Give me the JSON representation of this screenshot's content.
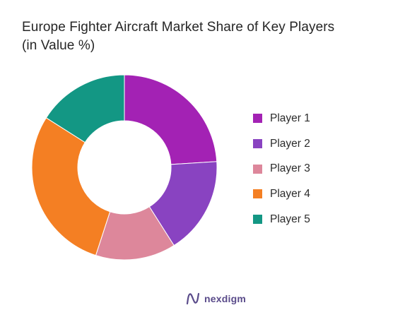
{
  "title_line1": "Europe Fighter Aircraft Market Share of Key Players",
  "title_line2": "(in Value %)",
  "chart_data": {
    "type": "pie",
    "categories": [
      "Player 1",
      "Player 2",
      "Player 3",
      "Player 4",
      "Player 5"
    ],
    "values": [
      24,
      17,
      14,
      29,
      16
    ],
    "colors": [
      "#a322b4",
      "#8943c1",
      "#dd879b",
      "#f47f23",
      "#139784"
    ],
    "donut": true,
    "legend_position": "right"
  },
  "brand": {
    "name": "nexdigm"
  }
}
